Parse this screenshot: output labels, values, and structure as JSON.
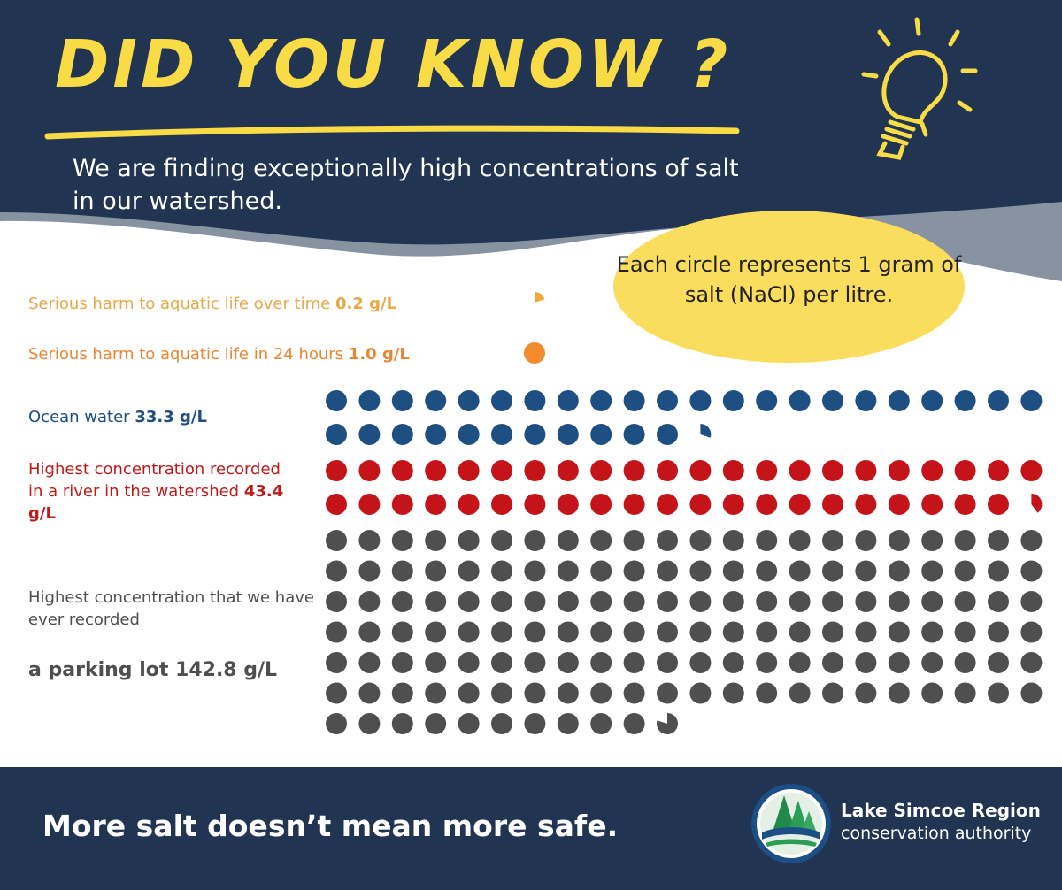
{
  "header": {
    "title": "DID YOU KNOW ?",
    "subtitle": "We are finding exceptionally high concentrations of salt in our watershed."
  },
  "callout": {
    "text": "Each circle represents 1 gram of salt (NaCl) per litre."
  },
  "footer": {
    "tagline": "More salt doesn’t mean more safe.",
    "org_name": "Lake Simcoe Region",
    "org_sub": "conservation authority"
  },
  "colors": {
    "navy": "#213452",
    "yellow": "#f9dc45",
    "ocean_blue": "#1e4f82",
    "river_red": "#c4141a",
    "parking_gray": "#4f4f4f",
    "harm_24h_orange": "#f28a2e",
    "harm_time_orange": "#f3a73a"
  },
  "chart_data": {
    "type": "pictograph",
    "unit": "Each circle represents 1 gram of salt (NaCl) per litre",
    "series": [
      {
        "key": "harm_time",
        "label_prefix": "Serious harm to aquatic life over time",
        "value_text": "0.2 g/L",
        "value": 0.2,
        "color": "#f3a73a"
      },
      {
        "key": "harm_24h",
        "label_prefix": "Serious harm to aquatic life in 24 hours",
        "value_text": "1.0 g/L",
        "value": 1.0,
        "color": "#f28a2e"
      },
      {
        "key": "ocean",
        "label_prefix": "Ocean water",
        "value_text": "33.3 g/L",
        "value": 33.3,
        "color": "#1e4f82"
      },
      {
        "key": "river",
        "label_prefix": "Highest concentration recorded in a river in the watershed",
        "value_text": "43.4 g/L",
        "value": 43.4,
        "color": "#c4141a"
      },
      {
        "key": "parking",
        "label_prefix": "Highest concentration that we have ever recorded",
        "label_line2": "a parking lot 142.8 g/L",
        "value": 142.8,
        "color": "#4f4f4f"
      }
    ]
  }
}
